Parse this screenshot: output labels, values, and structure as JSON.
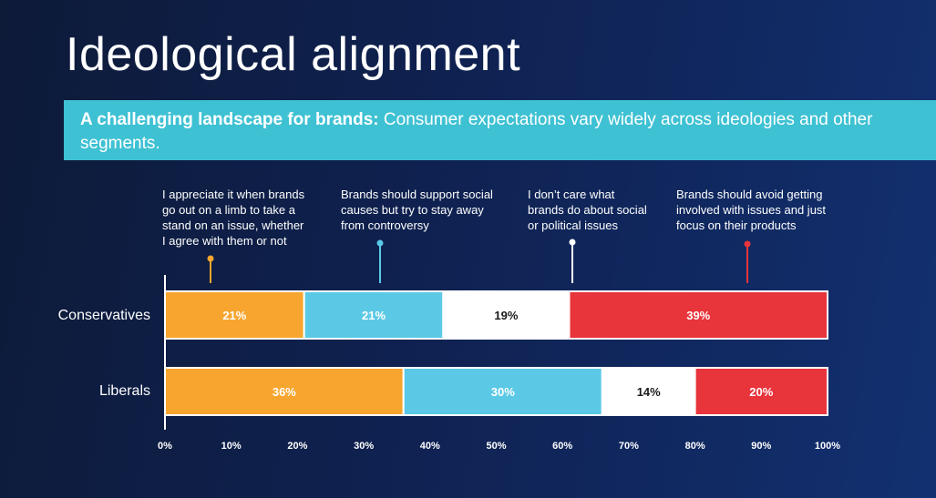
{
  "title": "Ideological alignment",
  "banner": {
    "bold": "A challenging landscape for brands:",
    "text": " Consumer expectations vary widely across ideologies and other segments."
  },
  "colors": {
    "orange": "#f7a52e",
    "cyan": "#5bc9e6",
    "white": "#ffffff",
    "red": "#e8343b"
  },
  "chart_data": {
    "type": "bar",
    "orientation": "horizontal",
    "stacked": true,
    "categories": [
      "Conservatives",
      "Liberals"
    ],
    "series": [
      {
        "name": "I appreciate it when brands go out on a limb to take a stand on an issue, whether I agree with them or not",
        "lines": [
          "I appreciate it when brands",
          "go out on a limb to take a",
          "stand on an issue, whether",
          "I agree with them or not"
        ],
        "color": "#f7a52e",
        "values": [
          21,
          36
        ],
        "labels": [
          "21%",
          "36%"
        ]
      },
      {
        "name": "Brands should support social causes but try to stay away from controversy",
        "lines": [
          "Brands should support social",
          "causes but try to stay away",
          "from controversy"
        ],
        "color": "#5bc9e6",
        "values": [
          21,
          30
        ],
        "labels": [
          "21%",
          "30%"
        ]
      },
      {
        "name": "I don't care what brands do about social or political issues",
        "lines": [
          "I don’t care what",
          "brands do about social",
          "or political issues"
        ],
        "color": "#ffffff",
        "values": [
          19,
          14
        ],
        "labels": [
          "19%",
          "14%"
        ]
      },
      {
        "name": "Brands should avoid getting involved with issues and just focus on their products",
        "lines": [
          "Brands should avoid getting",
          "involved with issues and just",
          "focus on their products"
        ],
        "color": "#e8343b",
        "values": [
          39,
          20
        ],
        "labels": [
          "39%",
          "20%"
        ]
      }
    ],
    "xlim": [
      0,
      100
    ],
    "xticks": [
      "0%",
      "10%",
      "20%",
      "30%",
      "40%",
      "50%",
      "60%",
      "70%",
      "80%",
      "90%",
      "100%"
    ],
    "grid": false,
    "legend": "top"
  }
}
